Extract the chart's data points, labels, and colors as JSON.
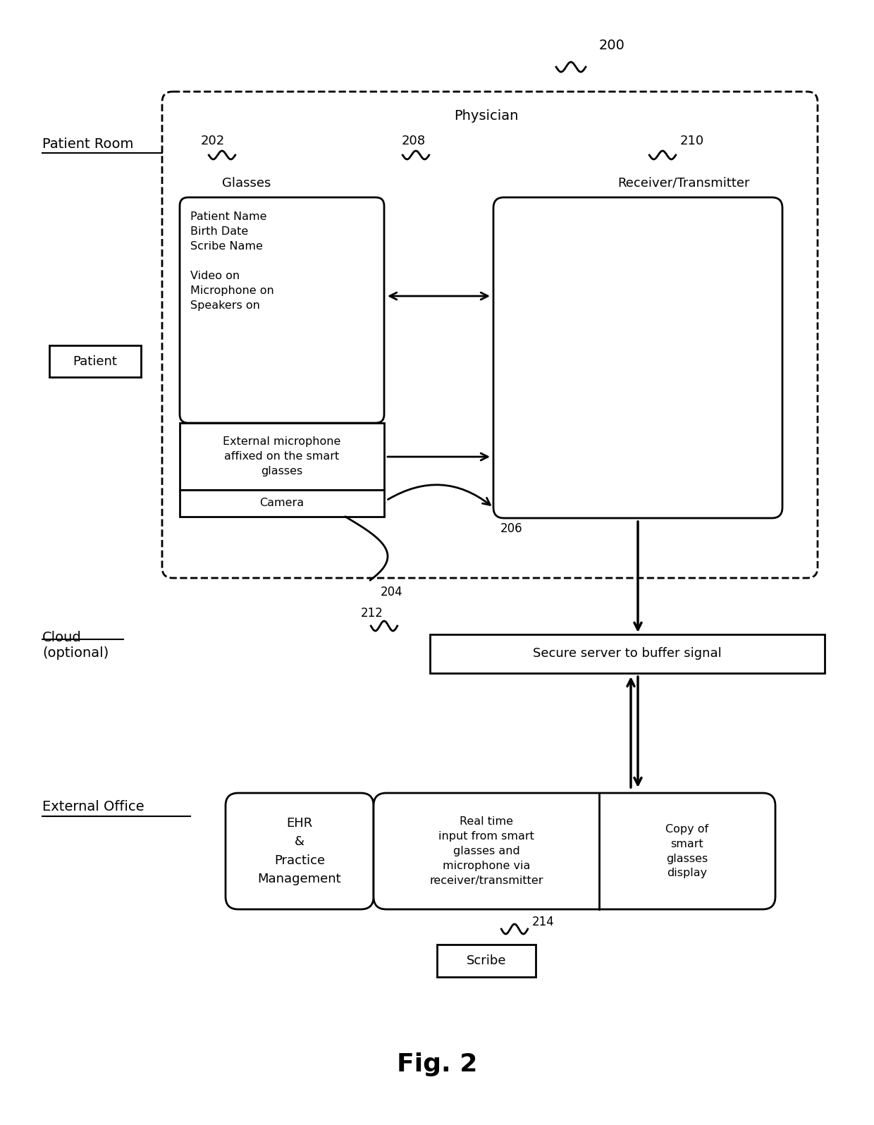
{
  "fig_width": 12.4,
  "fig_height": 15.96,
  "bg_color": "#ffffff",
  "title": "Fig. 2",
  "label_200": "200",
  "label_202": "202",
  "label_204": "204",
  "label_206": "206",
  "label_208": "208",
  "label_210": "210",
  "label_212": "212",
  "label_214": "214",
  "section_patient_room": "Patient Room",
  "section_cloud": "Cloud\n(optional)",
  "section_external_office": "External Office",
  "physician_label": "Physician",
  "glasses_label": "Glasses",
  "receiver_label": "Receiver/Transmitter",
  "glasses_content": "Patient Name\nBirth Date\nScribe Name\n\nVideo on\nMicrophone on\nSpeakers on",
  "ext_mic_content": "External microphone\naffixed on the smart\nglasses",
  "camera_content": "Camera",
  "patient_label": "Patient",
  "secure_server_label": "Secure server to buffer signal",
  "ehr_label": "EHR\n&\nPractice\nManagement",
  "realtime_label": "Real time\ninput from smart\nglasses and\nmicrophone via\nreceiver/transmitter",
  "copy_label": "Copy of\nsmart\nglasses\ndisplay",
  "scribe_label": "Scribe"
}
